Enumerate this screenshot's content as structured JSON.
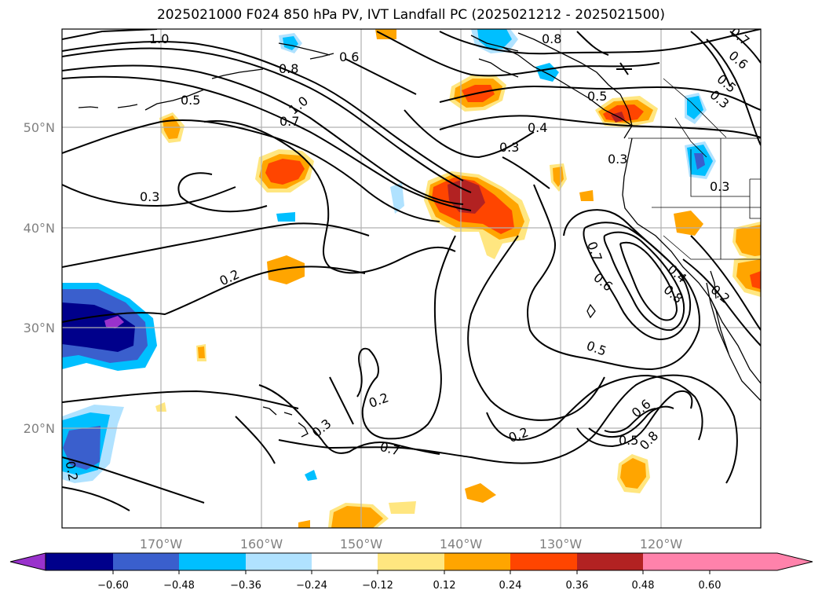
{
  "title": "2025021000 F024 850 hPa PV, IVT Landfall PC (2025021212 - 2025021500)",
  "map": {
    "region": "North-East Pacific",
    "lon_labels": [
      "170°W",
      "160°W",
      "150°W",
      "140°W",
      "130°W",
      "120°W"
    ],
    "lat_labels": [
      "50°N",
      "40°N",
      "30°N",
      "20°N"
    ],
    "contour_labels": [
      "1.0",
      "0.8",
      "0.6",
      "0.8",
      "0.5",
      "1.0",
      "0.7",
      "0.3",
      "0.5",
      "0.4",
      "0.3",
      "0.3",
      "0.3",
      "0.7",
      "0.6",
      "0.4",
      "0.8",
      "0.2",
      "0.5",
      "0.2",
      "0.3",
      "0.2",
      "0.2",
      "0.7",
      "0.6",
      "0.5",
      "0.8",
      "0.7",
      "0.6",
      "0.5",
      "0.3",
      "0.2"
    ]
  },
  "colorbar": {
    "ticks": [
      "−0.60",
      "−0.48",
      "−0.36",
      "−0.24",
      "−0.12",
      "0.12",
      "0.24",
      "0.36",
      "0.48",
      "0.60"
    ],
    "colors": [
      "#9932cc",
      "#00008b",
      "#3a5fcd",
      "#00bfff",
      "#b0e2ff",
      "#ffffff",
      "#ffe680",
      "#ffa500",
      "#ff4500",
      "#b22222",
      "#ff82ab"
    ]
  }
}
